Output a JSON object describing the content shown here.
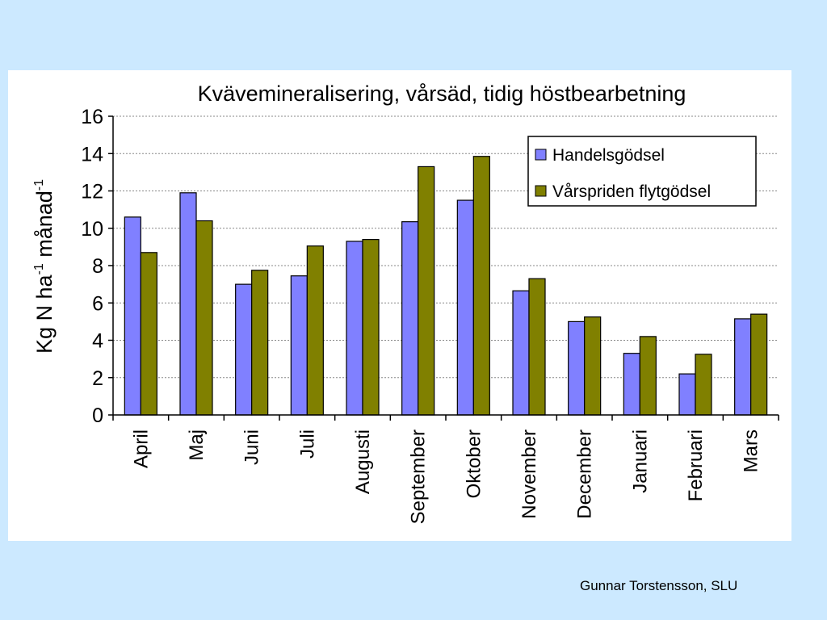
{
  "chart_data": {
    "type": "bar",
    "title": "Kvävemineralisering, vårsäd, tidig höstbearbetning",
    "ylabel": {
      "base": "Kg N ha",
      "sup1": "-1",
      "mid": " månad",
      "sup2": "-1"
    },
    "xlabel": "",
    "ylim": [
      0,
      16
    ],
    "yticks": [
      0,
      2,
      4,
      6,
      8,
      10,
      12,
      14,
      16
    ],
    "grid": true,
    "legend_position": "top-right",
    "categories": [
      "April",
      "Maj",
      "Juni",
      "Juli",
      "Augusti",
      "September",
      "Oktober",
      "November",
      "December",
      "Januari",
      "Februari",
      "Mars"
    ],
    "series": [
      {
        "name": "Handelsgödsel",
        "color": "#8080ff",
        "values": [
          10.6,
          11.9,
          7.0,
          7.45,
          9.3,
          10.35,
          11.5,
          6.65,
          5.0,
          3.3,
          2.2,
          5.15
        ]
      },
      {
        "name": "Vårspriden flytgödsel",
        "color": "#808000",
        "values": [
          8.7,
          10.4,
          7.75,
          9.05,
          9.4,
          13.3,
          13.85,
          7.3,
          5.25,
          4.2,
          3.25,
          5.4
        ]
      }
    ]
  },
  "footer": {
    "credit": "Gunnar Torstensson, SLU"
  }
}
